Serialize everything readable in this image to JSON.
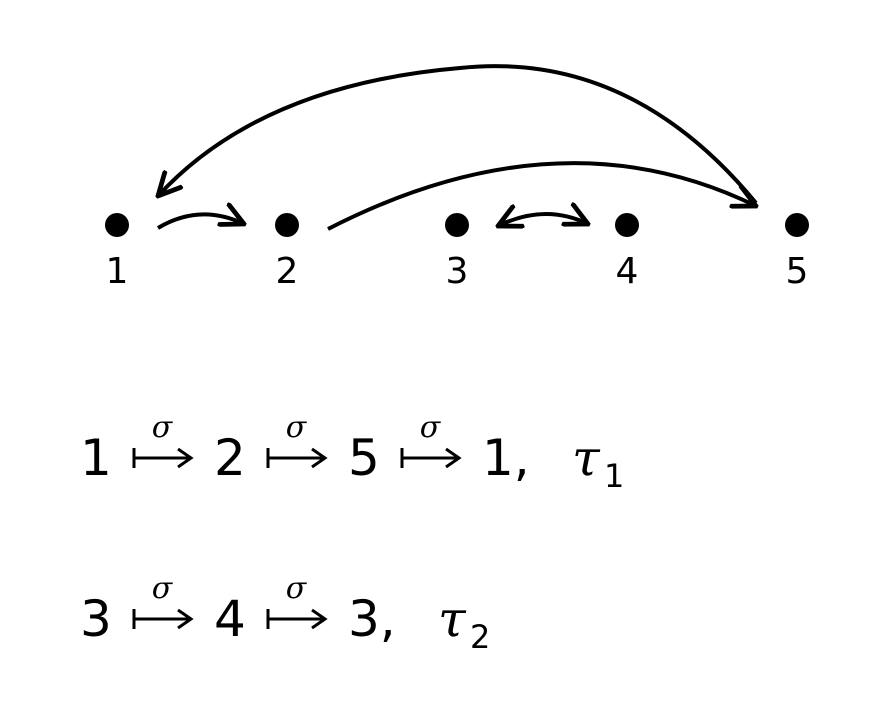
{
  "nodes": [
    {
      "label": "1"
    },
    {
      "label": "2"
    },
    {
      "label": "3"
    },
    {
      "label": "4"
    },
    {
      "label": "5"
    }
  ],
  "cycles": [
    {
      "steps": [
        "1",
        "2",
        "5",
        "1"
      ],
      "map_symbol": "σ",
      "tail": ",",
      "name": "τ",
      "index": "1"
    },
    {
      "steps": [
        "3",
        "4",
        "3"
      ],
      "map_symbol": "σ",
      "tail": ",",
      "name": "τ",
      "index": "2"
    }
  ]
}
